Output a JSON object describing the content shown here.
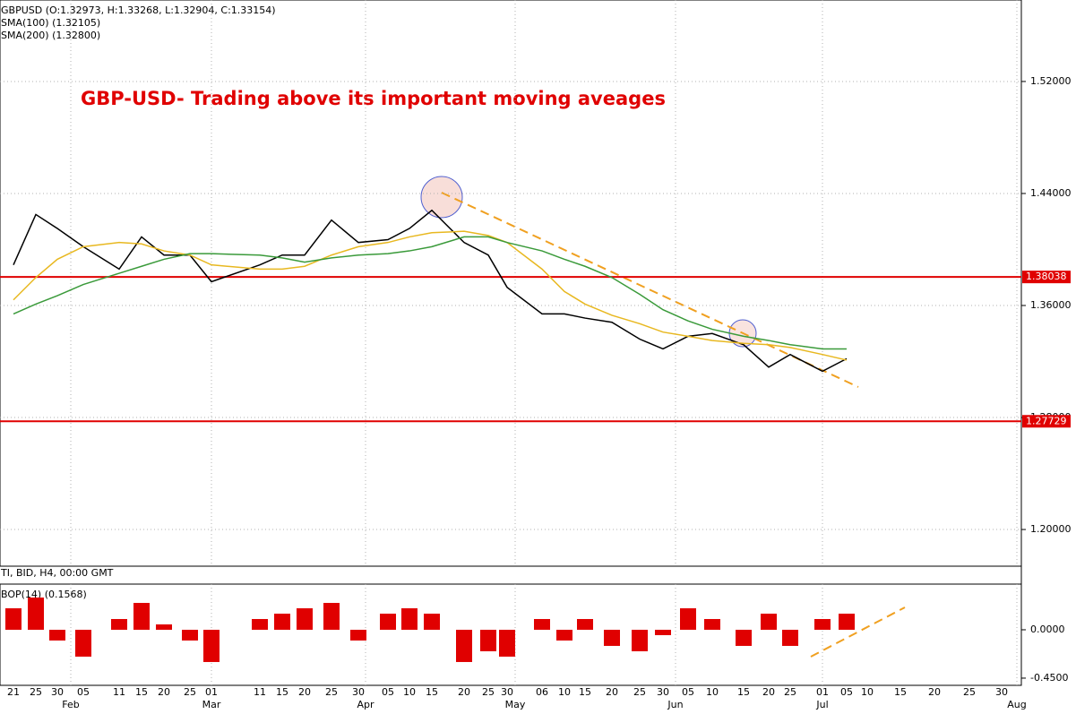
{
  "chart_data": {
    "type": "line",
    "title": "GBP-USD- Trading above its important moving aveages",
    "legend_lines": [
      "GBPUSD (O:1.32973, H:1.33268, L:1.32904, C:1.33154)",
      "SMA(100) (1.32105)",
      "SMA(200) (1.32800)"
    ],
    "panel_info": "TI, BID, H4, 00:00 GMT",
    "categories": [
      "21",
      "25",
      "30",
      "05",
      "11",
      "15",
      "20",
      "25",
      "01",
      "11",
      "15",
      "20",
      "25",
      "30",
      "05",
      "10",
      "15",
      "20",
      "25",
      "30",
      "06",
      "10",
      "15",
      "20",
      "25",
      "30",
      "05",
      "10",
      "15",
      "20",
      "25",
      "01",
      "05",
      "10",
      "15",
      "20",
      "25",
      "30"
    ],
    "months": [
      "Feb",
      "Mar",
      "Apr",
      "May",
      "Jun",
      "Jul",
      "Aug"
    ],
    "ylim": [
      1.1738,
      1.5782
    ],
    "yticks": [
      {
        "value": 1.52,
        "label": "1.52000"
      },
      {
        "value": 1.44,
        "label": "1.44000"
      },
      {
        "value": 1.36,
        "label": "1.36000"
      },
      {
        "value": 1.28,
        "label": "1.28000"
      },
      {
        "value": 1.2,
        "label": "1.20000"
      }
    ],
    "grid": true,
    "hlines": [
      {
        "value": 1.38038,
        "color": "#e00000"
      },
      {
        "value": 1.27729,
        "color": "#e00000"
      }
    ],
    "series": [
      {
        "color": "#000000",
        "values": [
          1.389,
          1.425,
          1.415,
          1.402,
          1.386,
          1.409,
          1.396,
          1.396,
          1.377,
          1.389,
          1.396,
          1.396,
          1.421,
          1.405,
          1.407,
          1.415,
          1.428,
          1.405,
          1.396,
          1.373,
          1.354,
          1.354,
          1.351,
          1.348,
          1.336,
          1.329,
          1.338,
          1.34,
          1.332,
          1.316,
          1.325,
          1.313,
          1.322,
          null,
          null,
          null,
          null,
          null
        ]
      },
      {
        "color": "#e8b820",
        "values": [
          1.364,
          1.38,
          1.393,
          1.402,
          1.405,
          1.404,
          1.399,
          1.396,
          1.389,
          1.386,
          1.386,
          1.388,
          1.396,
          1.402,
          1.405,
          1.409,
          1.412,
          1.413,
          1.41,
          1.405,
          1.386,
          1.37,
          1.361,
          1.353,
          1.347,
          1.341,
          1.338,
          1.335,
          1.333,
          1.332,
          1.33,
          1.325,
          1.321,
          null,
          null,
          null,
          null,
          null
        ]
      },
      {
        "color": "#3a9a3a",
        "values": [
          1.354,
          1.361,
          1.367,
          1.375,
          1.383,
          1.388,
          1.393,
          1.397,
          1.397,
          1.396,
          1.394,
          1.391,
          1.394,
          1.396,
          1.397,
          1.399,
          1.402,
          1.409,
          1.409,
          1.405,
          1.399,
          1.393,
          1.388,
          1.38,
          1.368,
          1.357,
          1.349,
          1.343,
          1.338,
          1.335,
          1.332,
          1.329,
          1.329,
          null,
          null,
          null,
          null,
          null
        ]
      }
    ],
    "indicator": {
      "type": "bar",
      "name": "BOP(14) (0.1568)",
      "color": "#e00000",
      "ylim": [
        -0.517,
        0.425
      ],
      "yticks": [
        {
          "value": 0,
          "label": "0.0000"
        },
        {
          "value": -0.45,
          "label": "-0.4500"
        }
      ],
      "values": [
        0.2,
        0.3,
        -0.1,
        -0.25,
        0.1,
        0.25,
        0.05,
        -0.1,
        -0.3,
        0.1,
        0.15,
        0.2,
        0.25,
        -0.1,
        0.15,
        0.2,
        0.15,
        -0.3,
        -0.2,
        -0.25,
        0.1,
        -0.1,
        0.1,
        -0.15,
        -0.2,
        -0.05,
        0.2,
        0.1,
        -0.15,
        0.15,
        -0.15,
        0.1,
        0.15,
        null,
        null,
        null,
        null,
        null
      ]
    }
  }
}
